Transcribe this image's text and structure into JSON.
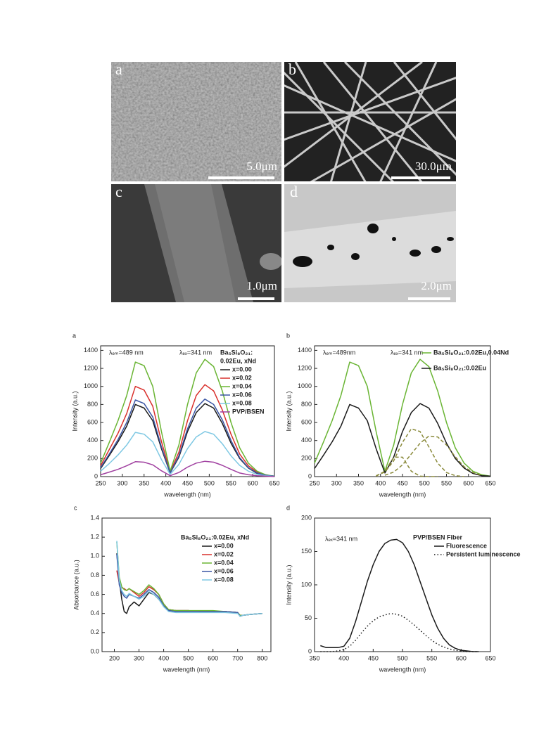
{
  "images": [
    {
      "letter": "a",
      "scale": "5.0μm"
    },
    {
      "letter": "b",
      "scale": "30.0μm"
    },
    {
      "letter": "c",
      "scale": "1.0μm"
    },
    {
      "letter": "d",
      "scale": "2.0μm"
    }
  ],
  "chart_data": [
    {
      "type": "line",
      "label": "a",
      "xlabel": "wavelength (nm)",
      "ylabel": "Intensity (a.u.)",
      "annotations": [
        "λₑₘ=489 nm",
        "λₑₓ=341 nm"
      ],
      "legend": "upper right",
      "legend_title": [
        "Ba₅Si₈O₂₁:",
        "0.02Eu, xNd"
      ],
      "xlim": [
        250,
        650
      ],
      "xticks": [
        250,
        300,
        350,
        400,
        450,
        500,
        550,
        600,
        650
      ],
      "ylim": [
        0,
        1450
      ],
      "yticks": [
        0,
        200,
        400,
        600,
        800,
        1000,
        1200,
        1400
      ],
      "x": [
        250,
        270,
        290,
        310,
        330,
        350,
        370,
        390,
        410,
        430,
        450,
        470,
        490,
        510,
        530,
        550,
        570,
        590,
        610,
        630,
        650
      ],
      "series": [
        {
          "name": "x=0.00",
          "color": "#1a1a1a",
          "values": [
            90,
            235,
            385,
            560,
            800,
            760,
            620,
            310,
            40,
            215,
            500,
            710,
            810,
            760,
            590,
            370,
            200,
            95,
            35,
            10,
            5
          ]
        },
        {
          "name": "x=0.02",
          "color": "#d9302c",
          "values": [
            120,
            300,
            480,
            700,
            1000,
            960,
            780,
            390,
            50,
            270,
            620,
            900,
            1020,
            950,
            740,
            470,
            250,
            120,
            50,
            15,
            5
          ]
        },
        {
          "name": "x=0.04",
          "color": "#6ab534",
          "values": [
            150,
            380,
            620,
            900,
            1270,
            1230,
            1000,
            500,
            60,
            350,
            800,
            1150,
            1300,
            1220,
            950,
            600,
            320,
            150,
            60,
            20,
            5
          ]
        },
        {
          "name": "x=0.06",
          "color": "#3a55a4",
          "values": [
            100,
            250,
            410,
            600,
            850,
            810,
            660,
            330,
            40,
            230,
            530,
            760,
            860,
            800,
            630,
            400,
            210,
            100,
            40,
            15,
            5
          ]
        },
        {
          "name": "x=0.08",
          "color": "#7ec8e3",
          "values": [
            60,
            145,
            240,
            350,
            490,
            470,
            385,
            190,
            25,
            135,
            310,
            440,
            500,
            470,
            365,
            230,
            125,
            60,
            25,
            10,
            0
          ]
        },
        {
          "name": "PVP/BSEN",
          "color": "#a040a0",
          "values": [
            20,
            50,
            80,
            120,
            165,
            160,
            130,
            65,
            10,
            45,
            105,
            150,
            170,
            160,
            125,
            80,
            40,
            20,
            10,
            5,
            0
          ]
        }
      ]
    },
    {
      "type": "line",
      "label": "b",
      "xlabel": "wavelength (nm)",
      "ylabel": "Intensity (a.u.)",
      "annotations": [
        "λₑₘ=489nm",
        "λₑₓ=341 nm"
      ],
      "legend": "upper right",
      "xlim": [
        250,
        650
      ],
      "xticks": [
        250,
        300,
        350,
        400,
        450,
        500,
        550,
        600,
        650
      ],
      "ylim": [
        0,
        1450
      ],
      "yticks": [
        0,
        200,
        400,
        600,
        800,
        1000,
        1200,
        1400
      ],
      "x": [
        250,
        270,
        290,
        310,
        330,
        350,
        370,
        390,
        410,
        430,
        450,
        470,
        490,
        510,
        530,
        550,
        570,
        590,
        610,
        630,
        650
      ],
      "series": [
        {
          "name": "Ba₅Si₈O₂₁:0.02Eu,0.04Nd",
          "color": "#6ab534",
          "values": [
            150,
            380,
            620,
            900,
            1270,
            1230,
            1000,
            500,
            60,
            350,
            800,
            1150,
            1300,
            1220,
            950,
            600,
            320,
            150,
            60,
            20,
            5
          ]
        },
        {
          "name": "Ba₅Si₈O₂₁:0.02Eu",
          "color": "#1a1a1a",
          "values": [
            90,
            235,
            385,
            560,
            800,
            760,
            620,
            310,
            40,
            215,
            500,
            710,
            810,
            760,
            590,
            370,
            200,
            95,
            35,
            10,
            5
          ]
        },
        {
          "color": "#8a8a3a",
          "dash": "dashed",
          "values": [
            null,
            null,
            null,
            null,
            null,
            null,
            null,
            5,
            60,
            215,
            215,
            60,
            5,
            0,
            0,
            null,
            null,
            null,
            null,
            null,
            null
          ]
        },
        {
          "color": "#8a8a3a",
          "dash": "dashed",
          "values": [
            null,
            null,
            null,
            null,
            null,
            null,
            null,
            10,
            50,
            175,
            380,
            530,
            500,
            330,
            150,
            45,
            10,
            0,
            null,
            null,
            null
          ]
        },
        {
          "color": "#8a8a3a",
          "dash": "dashed",
          "values": [
            null,
            null,
            null,
            null,
            null,
            null,
            null,
            null,
            15,
            50,
            130,
            250,
            370,
            450,
            440,
            350,
            220,
            110,
            45,
            15,
            null
          ]
        }
      ]
    },
    {
      "type": "line",
      "label": "c",
      "xlabel": "wavelength (nm)",
      "ylabel": "Absorbance (a.u.)",
      "legend": "upper right",
      "legend_title": "Ba₅Si₈O₂₁:0.02Eu, xNd",
      "xlim": [
        150,
        835
      ],
      "xticks": [
        200,
        300,
        400,
        500,
        600,
        700,
        800
      ],
      "ylim": [
        0,
        1.4
      ],
      "yticks": [
        {
          "value": 0,
          "label": "0.0"
        },
        0.2,
        0.4,
        0.6,
        0.8,
        {
          "value": 1,
          "label": "1.0"
        },
        1.2,
        1.4
      ],
      "x": [
        210,
        220,
        230,
        240,
        250,
        260,
        280,
        300,
        320,
        340,
        360,
        380,
        400,
        420,
        450,
        500,
        550,
        600,
        650,
        700,
        710,
        720,
        750,
        800
      ],
      "series": [
        {
          "name": "x=0.00",
          "color": "#1a1a1a",
          "values": [
            1.03,
            0.75,
            0.55,
            0.42,
            0.4,
            0.47,
            0.52,
            0.48,
            0.55,
            0.62,
            0.6,
            0.55,
            0.48,
            0.44,
            0.43,
            0.43,
            0.42,
            0.42,
            0.42,
            0.41,
            0.37,
            0.38,
            0.39,
            0.4
          ]
        },
        {
          "name": "x=0.02",
          "color": "#d9302c",
          "values": [
            0.85,
            0.72,
            0.67,
            0.66,
            0.64,
            0.66,
            0.62,
            0.58,
            0.62,
            0.68,
            0.65,
            0.6,
            0.5,
            0.44,
            0.43,
            0.43,
            0.42,
            0.42,
            0.42,
            0.41,
            0.38,
            0.38,
            0.39,
            0.4
          ]
        },
        {
          "name": "x=0.04",
          "color": "#6ab534",
          "values": [
            1.15,
            0.78,
            0.68,
            0.65,
            0.64,
            0.66,
            0.63,
            0.6,
            0.64,
            0.7,
            0.66,
            0.6,
            0.5,
            0.44,
            0.43,
            0.43,
            0.43,
            0.43,
            0.42,
            0.41,
            0.38,
            0.38,
            0.39,
            0.4
          ]
        },
        {
          "name": "x=0.06",
          "color": "#3a55a4",
          "values": [
            1.02,
            0.7,
            0.62,
            0.58,
            0.56,
            0.6,
            0.58,
            0.56,
            0.6,
            0.65,
            0.62,
            0.57,
            0.48,
            0.43,
            0.42,
            0.42,
            0.42,
            0.42,
            0.42,
            0.41,
            0.37,
            0.38,
            0.39,
            0.4
          ]
        },
        {
          "name": "x=0.08",
          "color": "#7ec8e3",
          "values": [
            1.16,
            0.75,
            0.64,
            0.6,
            0.58,
            0.61,
            0.58,
            0.55,
            0.58,
            0.63,
            0.6,
            0.55,
            0.47,
            0.42,
            0.41,
            0.41,
            0.41,
            0.41,
            0.41,
            0.4,
            0.37,
            0.38,
            0.39,
            0.4
          ]
        }
      ]
    },
    {
      "type": "line",
      "label": "d",
      "xlabel": "wavelength (nm)",
      "ylabel": "Intensity (a.u.)",
      "annotations": [
        "λₑₓ=341 nm"
      ],
      "legend": "upper right",
      "legend_title": "PVP/BSEN Fiber",
      "xlim": [
        350,
        650
      ],
      "xticks": [
        350,
        400,
        450,
        500,
        550,
        600,
        650
      ],
      "ylim": [
        0,
        200
      ],
      "yticks": [
        0,
        50,
        100,
        150,
        200
      ],
      "x": [
        360,
        370,
        380,
        390,
        400,
        410,
        420,
        430,
        440,
        450,
        460,
        470,
        480,
        490,
        500,
        510,
        520,
        530,
        540,
        550,
        560,
        570,
        580,
        590,
        600,
        610,
        620,
        630
      ],
      "series": [
        {
          "name": "Fluorescence",
          "color": "#1a1a1a",
          "values": [
            9,
            6,
            6,
            6,
            8,
            20,
            45,
            75,
            105,
            130,
            150,
            162,
            167,
            168,
            163,
            150,
            130,
            105,
            80,
            55,
            35,
            20,
            10,
            5,
            2,
            1,
            0,
            0
          ]
        },
        {
          "name": "Persistent luminescence",
          "color": "#1a1a1a",
          "dash": "dotted",
          "values": [
            0,
            0,
            0,
            1,
            3,
            8,
            17,
            28,
            38,
            46,
            52,
            55,
            57,
            56,
            53,
            47,
            40,
            32,
            24,
            17,
            11,
            7,
            4,
            2,
            1,
            0,
            0,
            0
          ]
        }
      ]
    }
  ]
}
